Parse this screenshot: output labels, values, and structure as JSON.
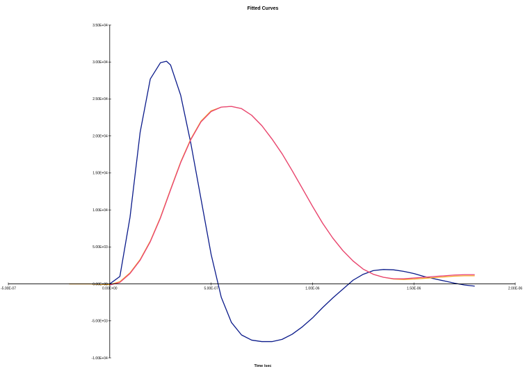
{
  "chart_data": {
    "type": "line",
    "title": "Fitted Curves",
    "xlabel": "Time /sec",
    "ylabel": "",
    "xlim": [
      -5e-07,
      2e-06
    ],
    "ylim": [
      -10000,
      35000
    ],
    "grid": false,
    "legend": "none",
    "x_ticks": [
      {
        "value": -5e-07,
        "label": "-5.00E-07"
      },
      {
        "value": 0,
        "label": "0.00E+00"
      },
      {
        "value": 5e-07,
        "label": "5.00E-07"
      },
      {
        "value": 1e-06,
        "label": "1.00E-06"
      },
      {
        "value": 1.5e-06,
        "label": "1.50E-06"
      },
      {
        "value": 2e-06,
        "label": "2.00E-06"
      }
    ],
    "y_ticks": [
      {
        "value": 35000,
        "label": "3.50E+04"
      },
      {
        "value": 30000,
        "label": "3.00E+04"
      },
      {
        "value": 25000,
        "label": "2.50E+04"
      },
      {
        "value": 20000,
        "label": "2.00E+04"
      },
      {
        "value": 15000,
        "label": "1.50E+04"
      },
      {
        "value": 10000,
        "label": "1.00E+04"
      },
      {
        "value": 5000,
        "label": "5.00E+03"
      },
      {
        "value": 0,
        "label": "0.00E+00"
      },
      {
        "value": -5000,
        "label": "-5.00E+03"
      },
      {
        "value": -10000,
        "label": "-1.00E+04"
      }
    ],
    "series": [
      {
        "color": "#0a1a8a",
        "x": [
          0,
          5e-08,
          1e-07,
          1.5e-07,
          2e-07,
          2.5e-07,
          2.8e-07,
          3e-07,
          3.5e-07,
          4e-07,
          4.5e-07,
          5e-07,
          5.5e-07,
          6e-07,
          6.5e-07,
          7e-07,
          7.5e-07,
          8e-07,
          8.5e-07,
          9e-07,
          9.5e-07,
          1e-06,
          1.05e-06,
          1.1e-06,
          1.15e-06,
          1.2e-06,
          1.25e-06,
          1.3e-06,
          1.35e-06,
          1.4e-06,
          1.45e-06,
          1.5e-06,
          1.55e-06,
          1.6e-06,
          1.65e-06,
          1.7e-06,
          1.75e-06,
          1.8e-06
        ],
        "y": [
          0,
          1000,
          9000,
          20500,
          27700,
          29900,
          30100,
          29600,
          25500,
          19000,
          11500,
          4000,
          -1800,
          -5200,
          -6900,
          -7600,
          -7800,
          -7800,
          -7500,
          -6800,
          -5800,
          -4600,
          -3200,
          -1900,
          -700,
          500,
          1300,
          1800,
          1950,
          1900,
          1700,
          1400,
          1000,
          700,
          400,
          100,
          -150,
          -300
        ]
      },
      {
        "color": "#f5a623",
        "x": [
          -2e-07,
          -1e-07,
          -5e-08,
          0,
          5e-08,
          1e-07,
          1.5e-07,
          2e-07,
          2.5e-07,
          3e-07,
          3.5e-07,
          4e-07,
          4.5e-07,
          5e-07,
          5.5e-07,
          6e-07,
          6.5e-07,
          7e-07,
          7.5e-07,
          8e-07,
          8.5e-07,
          9e-07,
          9.5e-07,
          1e-06,
          1.05e-06,
          1.1e-06,
          1.15e-06,
          1.2e-06,
          1.25e-06,
          1.3e-06,
          1.35e-06,
          1.4e-06,
          1.45e-06,
          1.5e-06,
          1.55e-06,
          1.6e-06,
          1.65e-06,
          1.7e-06,
          1.75e-06,
          1.8e-06
        ],
        "y": [
          0,
          0,
          -50,
          -100,
          300,
          1500,
          3300,
          5800,
          9000,
          12800,
          16500,
          19600,
          22000,
          23400,
          23900,
          24000,
          23700,
          22800,
          21400,
          19600,
          17600,
          15300,
          12900,
          10500,
          8200,
          6200,
          4500,
          3100,
          2000,
          1300,
          900,
          650,
          600,
          650,
          750,
          850,
          950,
          1050,
          1100,
          1100
        ]
      },
      {
        "color": "#e8407a",
        "x": [
          0,
          5e-08,
          1e-07,
          1.5e-07,
          2e-07,
          2.5e-07,
          3e-07,
          3.5e-07,
          4e-07,
          4.5e-07,
          5e-07,
          5.5e-07,
          6e-07,
          6.5e-07,
          7e-07,
          7.5e-07,
          8e-07,
          8.5e-07,
          9e-07,
          9.5e-07,
          1e-06,
          1.05e-06,
          1.1e-06,
          1.15e-06,
          1.2e-06,
          1.25e-06,
          1.3e-06,
          1.35e-06,
          1.4e-06,
          1.45e-06,
          1.5e-06,
          1.55e-06,
          1.6e-06,
          1.65e-06,
          1.7e-06,
          1.75e-06,
          1.8e-06
        ],
        "y": [
          -150,
          200,
          1400,
          3200,
          5700,
          8900,
          12700,
          16400,
          19500,
          21900,
          23300,
          23900,
          24000,
          23700,
          22800,
          21400,
          19600,
          17600,
          15300,
          12900,
          10500,
          8200,
          6200,
          4500,
          3100,
          2000,
          1300,
          900,
          700,
          700,
          800,
          900,
          1000,
          1100,
          1200,
          1250,
          1250
        ]
      }
    ]
  }
}
